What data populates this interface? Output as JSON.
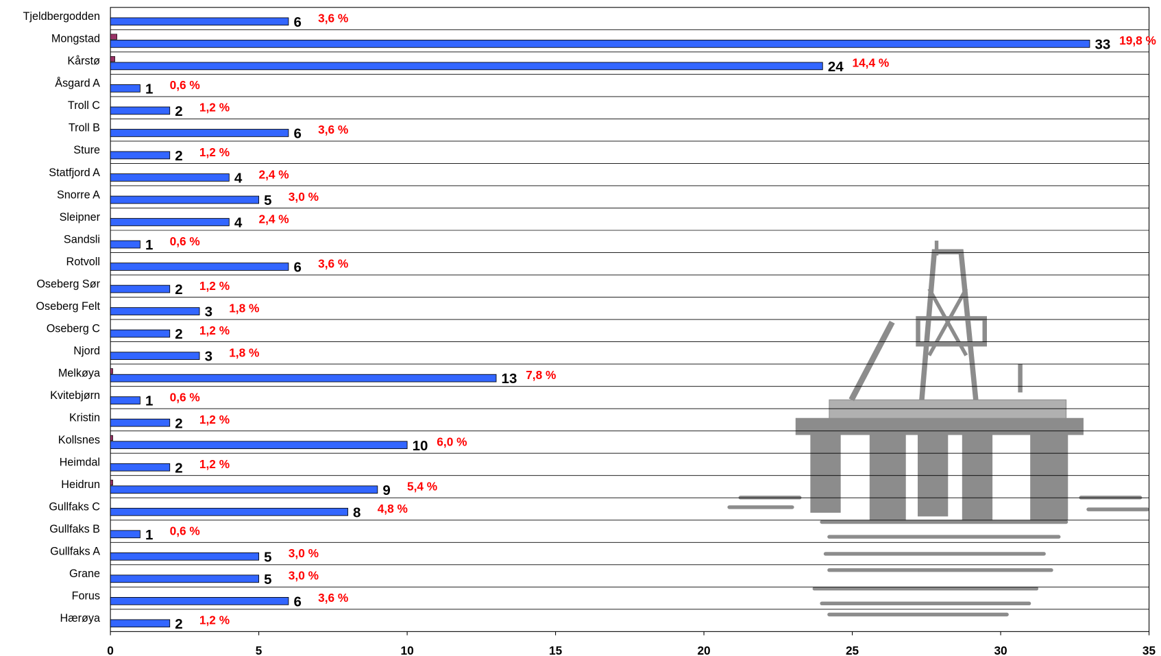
{
  "chart_data": {
    "type": "barh",
    "categories": [
      "Tjeldbergodden",
      "Mongstad",
      "Kårstø",
      "Åsgard A",
      "Troll C",
      "Troll B",
      "Sture",
      "Statfjord A",
      "Snorre A",
      "Sleipner",
      "Sandsli",
      "Rotvoll",
      "Oseberg Sør",
      "Oseberg Felt",
      "Oseberg C",
      "Njord",
      "Melkøya",
      "Kvitebjørn",
      "Kristin",
      "Kollsnes",
      "Heimdal",
      "Heidrun",
      "Gullfaks C",
      "Gullfaks B",
      "Gullfaks A",
      "Grane",
      "Forus",
      "Hærøya"
    ],
    "series": [
      {
        "color": "#3366ff",
        "values": [
          6,
          33,
          24,
          1,
          2,
          6,
          2,
          4,
          5,
          4,
          1,
          6,
          2,
          3,
          2,
          3,
          13,
          1,
          2,
          10,
          2,
          9,
          8,
          1,
          5,
          5,
          6,
          2
        ]
      },
      {
        "color": "#993366",
        "values": [
          0,
          0.22,
          0.15,
          0,
          0,
          0,
          0,
          0,
          0,
          0,
          0,
          0,
          0,
          0,
          0,
          0,
          0.08,
          0,
          0,
          0.08,
          0,
          0.08,
          0,
          0,
          0,
          0,
          0,
          0
        ]
      }
    ],
    "shares": {
      "values": [
        3.6,
        19.8,
        14.4,
        0.6,
        1.2,
        3.6,
        1.2,
        2.4,
        3.0,
        2.4,
        0.6,
        3.6,
        1.2,
        1.8,
        1.2,
        1.8,
        7.8,
        0.6,
        1.2,
        6.0,
        1.2,
        5.4,
        4.8,
        0.6,
        3.0,
        3.0,
        3.6,
        1.2
      ],
      "value_labels": [
        "3,6 %",
        "19,8 %",
        "14,4 %",
        "0,6 %",
        "1,2 %",
        "3,6 %",
        "1,2 %",
        "2,4 %",
        "3,0 %",
        "2,4 %",
        "0,6 %",
        "3,6 %",
        "1,2 %",
        "1,8 %",
        "1,2 %",
        "1,8 %",
        "7,8 %",
        "0,6 %",
        "1,2 %",
        "6,0 %",
        "1,2 %",
        "5,4 %",
        "4,8 %",
        "0,6 %",
        "3,0 %",
        "3,0 %",
        "3,6 %",
        "1,2 %"
      ],
      "color": "#ff0000"
    },
    "xlim": [
      0,
      35
    ],
    "xticks": [
      0,
      5,
      10,
      15,
      20,
      25,
      30,
      35
    ]
  }
}
